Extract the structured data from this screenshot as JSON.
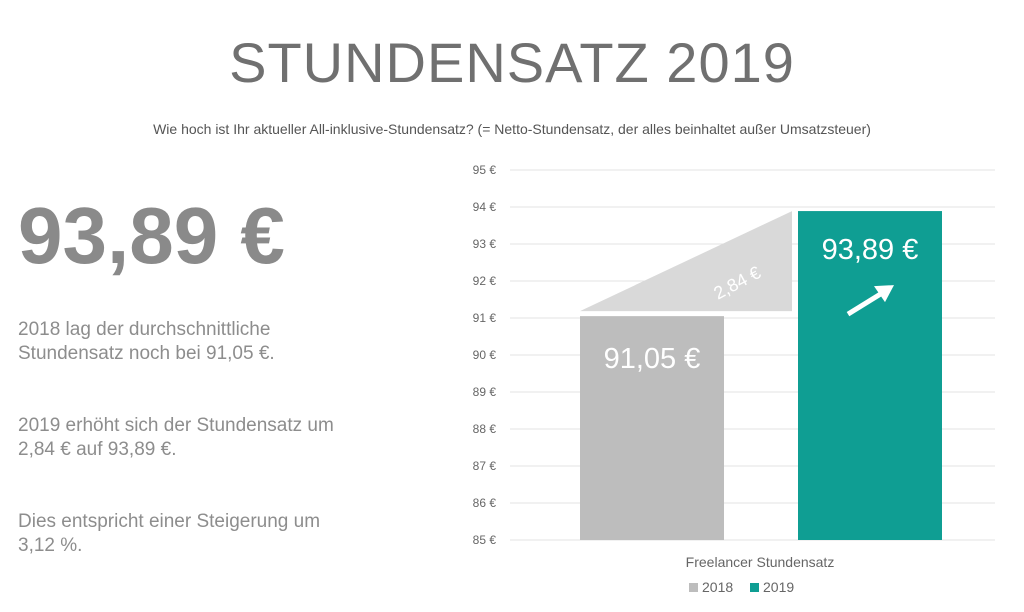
{
  "header": {
    "title": "STUNDENSATZ 2019",
    "subtitle": "Wie hoch ist Ihr aktueller All-inklusive-Stundensatz? (= Netto-Stundensatz, der alles beinhaltet außer Umsatzsteuer)"
  },
  "summary": {
    "headline_value": "93,89 €",
    "paragraphs": [
      "2018 lag der durchschnittliche Stundensatz noch bei 91,05 €.",
      "2019 erhöht sich der Stundensatz um 2,84 € auf 93,89 €.",
      "Dies entspricht einer Steigerung um 3,12 %."
    ]
  },
  "colors": {
    "bar_2018": "#bdbdbd",
    "bar_2019": "#0f9e93",
    "wedge": "#d9d9d9",
    "gridline": "#e3e3e3",
    "tick_text": "#666666",
    "title_text": "#707070"
  },
  "chart_data": {
    "type": "bar",
    "title": "",
    "xlabel": "Freelancer Stundensatz",
    "ylabel": "",
    "ylim": [
      85,
      95
    ],
    "y_ticks": [
      85,
      86,
      87,
      88,
      89,
      90,
      91,
      92,
      93,
      94,
      95
    ],
    "y_tick_labels": [
      "85 €",
      "86 €",
      "87 €",
      "88 €",
      "89 €",
      "90 €",
      "91 €",
      "92 €",
      "93 €",
      "94 €",
      "95 €"
    ],
    "categories": [
      "Freelancer Stundensatz"
    ],
    "series": [
      {
        "name": "2018",
        "values": [
          91.05
        ],
        "data_label": "91,05 €"
      },
      {
        "name": "2019",
        "values": [
          93.89
        ],
        "data_label": "93,89 €"
      }
    ],
    "difference": {
      "value": 2.84,
      "label": "2,84 €"
    },
    "legend": [
      "2018",
      "2019"
    ],
    "legend_position": "bottom",
    "grid": true
  }
}
